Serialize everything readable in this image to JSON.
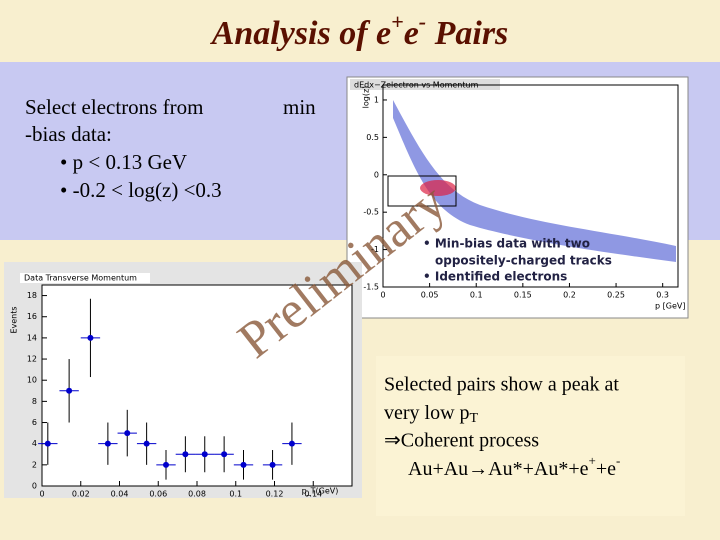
{
  "slide": {
    "title_parts": [
      "Analysis of e",
      "+",
      "e",
      "-",
      " Pairs"
    ],
    "left_text": [
      "Select electrons from",
      "min",
      "-bias data:",
      "• p < 0.13 GeV",
      "• -0.2 < log(z) <0.3"
    ],
    "preliminary": "Preliminary",
    "bottom_text": {
      "line1": "Selected pairs show a peak at",
      "line2": "very low p",
      "line2_sub": "T",
      "line3": "⇒Coherent process",
      "line4_parts": [
        "Au+Au→Au*+Au*+e",
        "+",
        "+e",
        "-"
      ]
    }
  },
  "scatter_plot": {
    "title": "dEdx−Zelectron vs Momentum",
    "y_label": "log(z)",
    "x_label": "p [GeV]",
    "xlim": [
      0,
      0.31
    ],
    "ylim": [
      -1.5,
      1.2
    ],
    "xticks": [
      0,
      0.05,
      0.1,
      0.15,
      0.2,
      0.25,
      0.3
    ],
    "yticks": [
      -1.5,
      -1,
      -0.5,
      0,
      0.5,
      1
    ],
    "legend": [
      "• Min-bias data with two",
      "oppositely-charged tracks",
      "• Identified electrons"
    ]
  },
  "chart_data": {
    "type": "errorbar",
    "title": "Data Transverse Momentum",
    "y_label": "Events",
    "x_label": "p_T(GeV)",
    "x": [
      0.003,
      0.014,
      0.025,
      0.034,
      0.044,
      0.054,
      0.064,
      0.074,
      0.084,
      0.094,
      0.104,
      0.119,
      0.129
    ],
    "values": [
      4,
      9,
      14,
      4,
      5,
      4,
      2,
      3,
      3,
      3,
      2,
      2,
      4
    ],
    "errors": [
      2,
      3,
      3.7,
      2,
      2.2,
      2,
      1.4,
      1.7,
      1.7,
      1.7,
      1.4,
      1.4,
      2
    ],
    "xerr": 0.005,
    "color": "#0000cc",
    "xlim": [
      0,
      0.16
    ],
    "ylim": [
      0,
      19
    ],
    "xticks": [
      0,
      0.02,
      0.04,
      0.06,
      0.08,
      0.1,
      0.12,
      0.14
    ],
    "yticks": [
      0,
      2,
      4,
      6,
      8,
      10,
      12,
      14,
      16,
      18
    ]
  }
}
